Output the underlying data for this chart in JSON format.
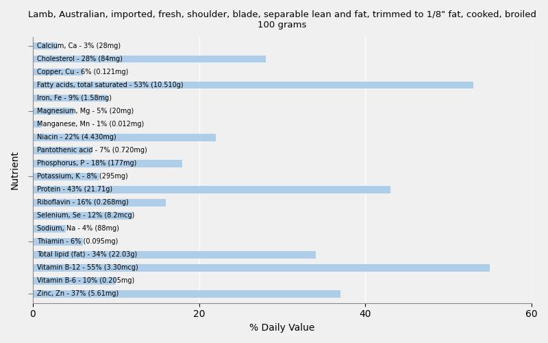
{
  "title": "Lamb, Australian, imported, fresh, shoulder, blade, separable lean and fat, trimmed to 1/8\" fat, cooked, broiled\n100 grams",
  "xlabel": "% Daily Value",
  "ylabel": "Nutrient",
  "xlim": [
    0,
    60
  ],
  "xticks": [
    0,
    20,
    40,
    60
  ],
  "bar_color": "#aecde8",
  "background_color": "#f0f0f0",
  "nutrients": [
    "Calcium, Ca - 3% (28mg)",
    "Cholesterol - 28% (84mg)",
    "Copper, Cu - 6% (0.121mg)",
    "Fatty acids, total saturated - 53% (10.510g)",
    "Iron, Fe - 9% (1.58mg)",
    "Magnesium, Mg - 5% (20mg)",
    "Manganese, Mn - 1% (0.012mg)",
    "Niacin - 22% (4.430mg)",
    "Pantothenic acid - 7% (0.720mg)",
    "Phosphorus, P - 18% (177mg)",
    "Potassium, K - 8% (295mg)",
    "Protein - 43% (21.71g)",
    "Riboflavin - 16% (0.268mg)",
    "Selenium, Se - 12% (8.2mcg)",
    "Sodium, Na - 4% (88mg)",
    "Thiamin - 6% (0.095mg)",
    "Total lipid (fat) - 34% (22.03g)",
    "Vitamin B-12 - 55% (3.30mcg)",
    "Vitamin B-6 - 10% (0.205mg)",
    "Zinc, Zn - 37% (5.61mg)"
  ],
  "values": [
    3,
    28,
    6,
    53,
    9,
    5,
    1,
    22,
    7,
    18,
    8,
    43,
    16,
    12,
    4,
    6,
    34,
    55,
    10,
    37
  ]
}
